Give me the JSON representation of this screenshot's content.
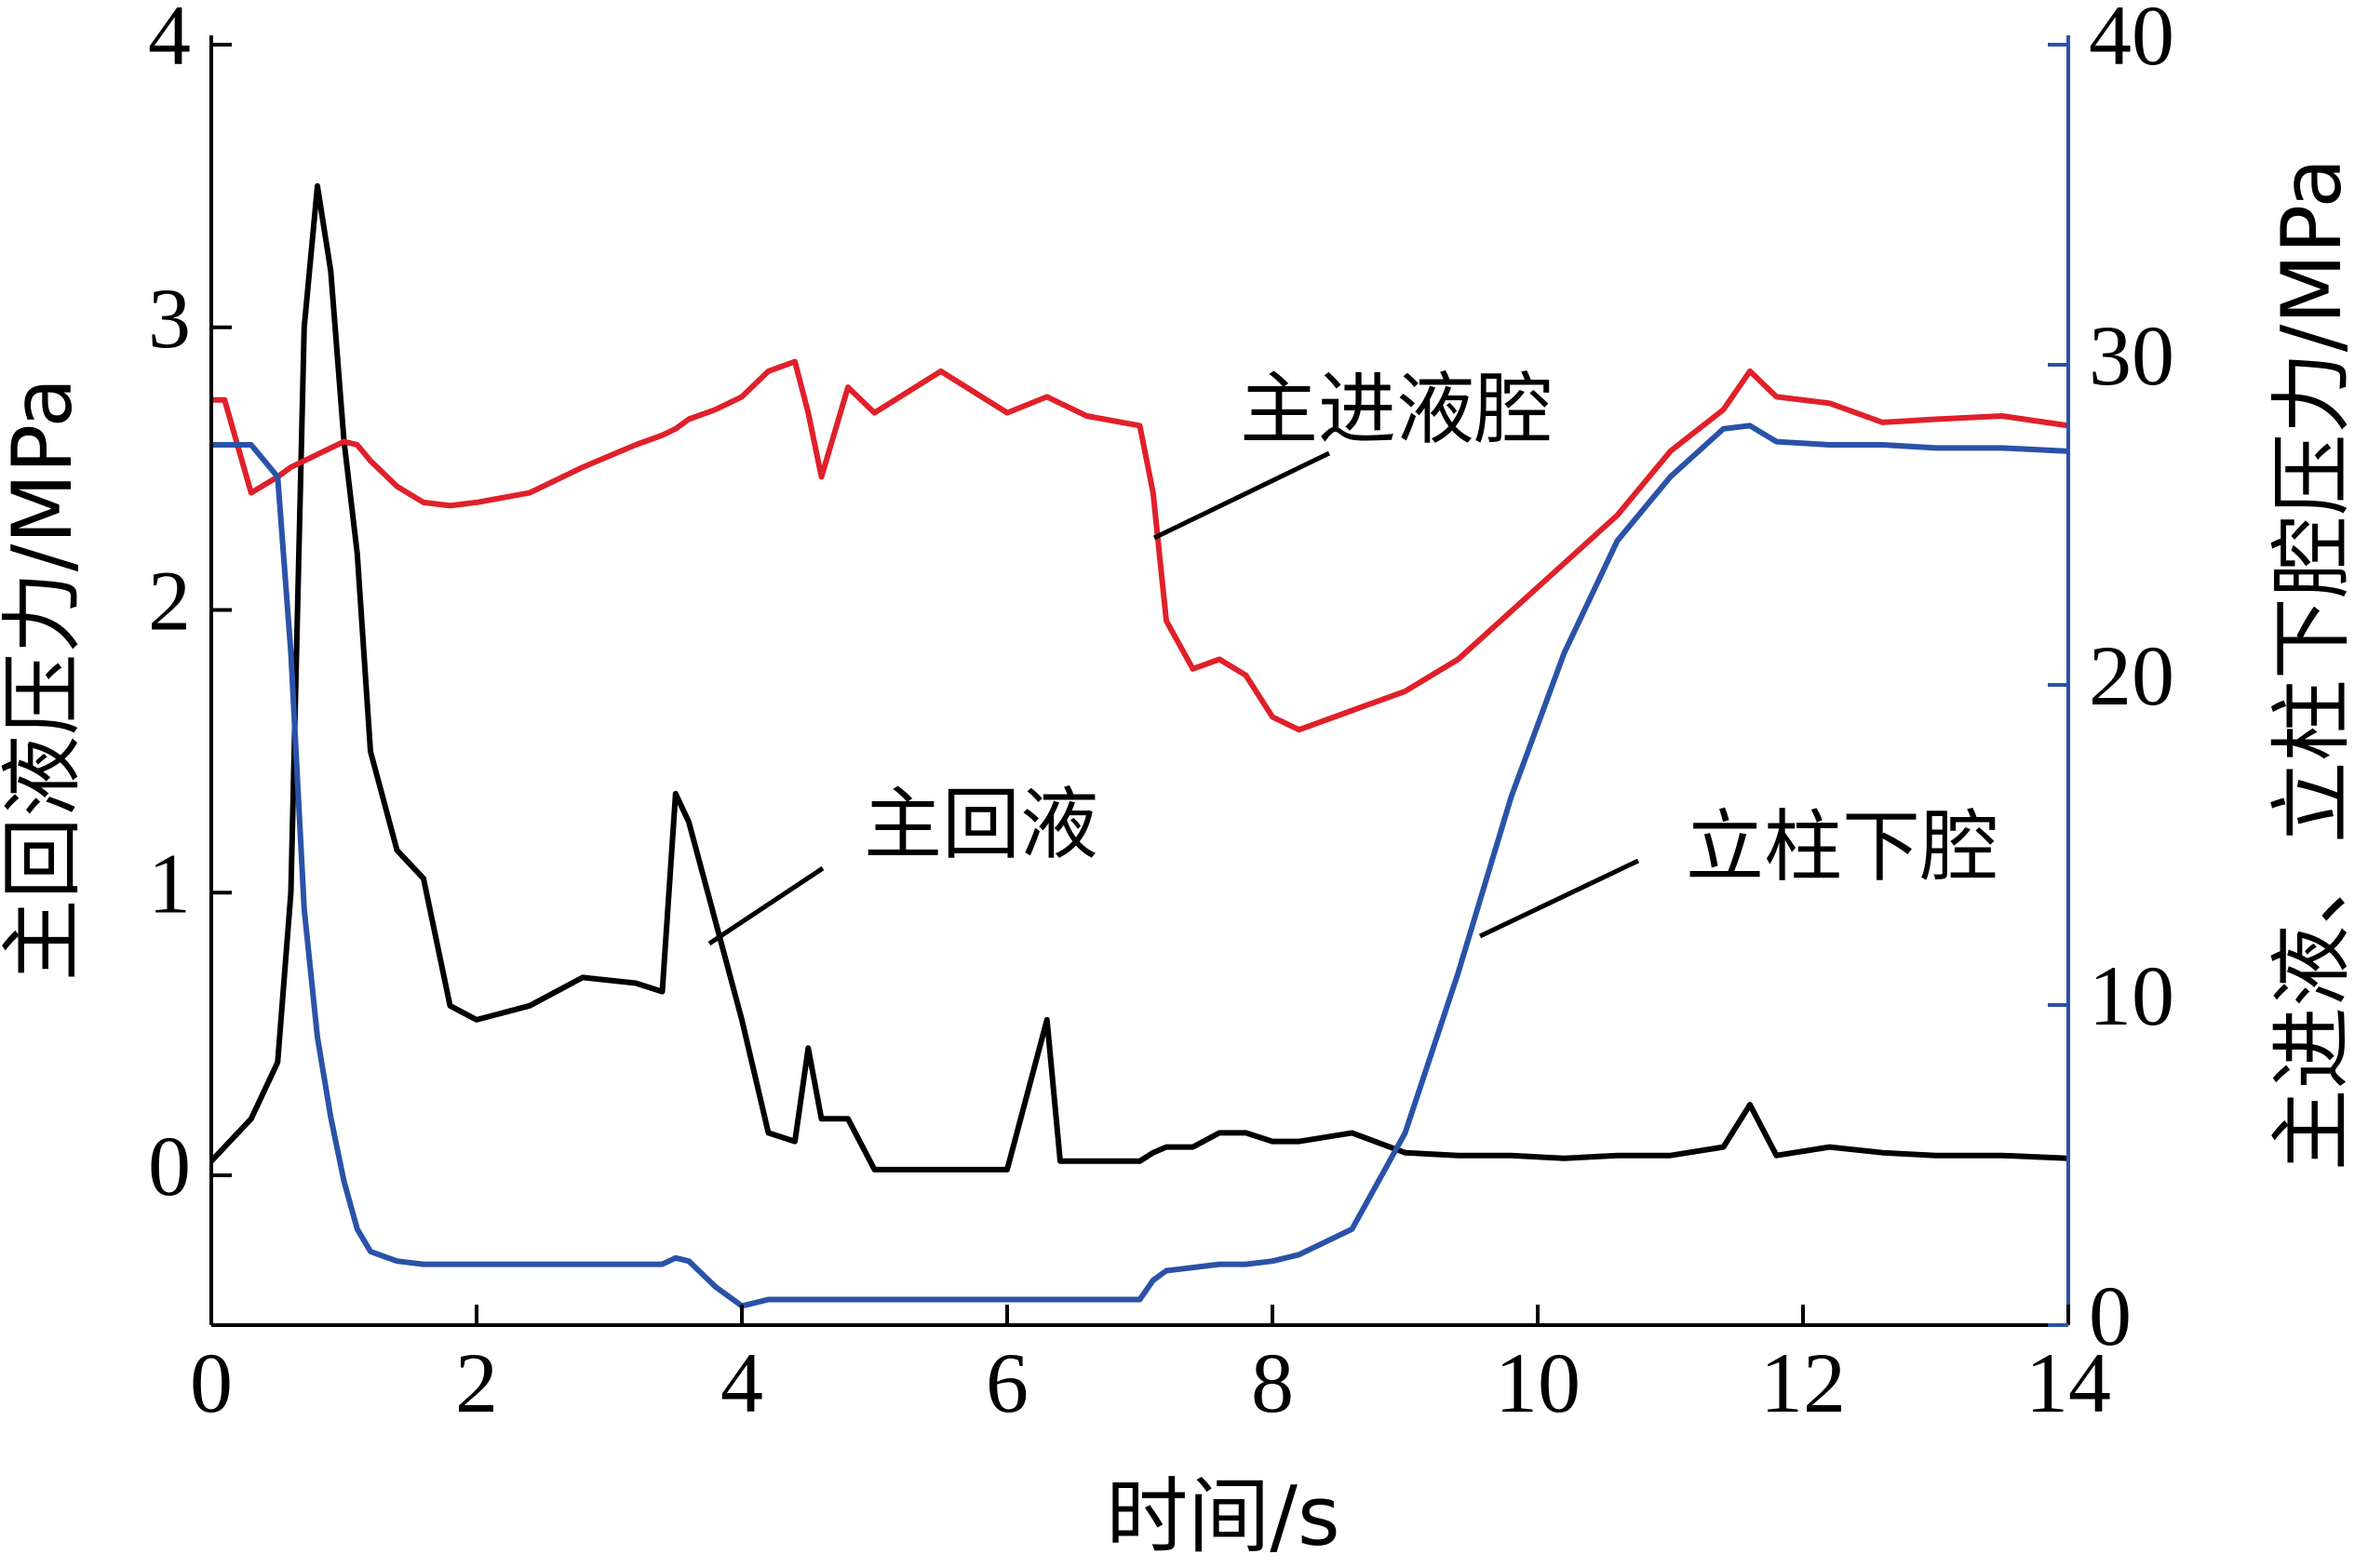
{
  "chart_data": {
    "type": "line",
    "x_label": "时间/s",
    "y_label": "主回液压力/MPa",
    "y2_label": "主进液、立柱下腔压力/MPa",
    "annotations": [
      "主进液腔",
      "主回液",
      "立柱下腔"
    ],
    "xlim": [
      0,
      14
    ],
    "xticks": [
      0,
      2,
      4,
      6,
      8,
      10,
      12,
      14
    ],
    "ylim": [
      -0.53,
      4
    ],
    "yticks": [
      0,
      1,
      2,
      3,
      4
    ],
    "y2lim": [
      0,
      40
    ],
    "y2ticks": [
      0,
      10,
      20,
      30,
      40
    ],
    "y_axis_color": "#000000",
    "y2_axis_color": "#2a52a8",
    "x": [
      0,
      0.1,
      0.3,
      0.5,
      0.6,
      0.7,
      0.8,
      0.9,
      1.0,
      1.1,
      1.2,
      1.4,
      1.6,
      1.8,
      2.0,
      2.4,
      2.8,
      3.2,
      3.4,
      3.5,
      3.6,
      3.8,
      4.0,
      4.2,
      4.4,
      4.5,
      4.6,
      4.8,
      5.0,
      5.5,
      6.0,
      6.3,
      6.4,
      6.6,
      7.0,
      7.1,
      7.2,
      7.4,
      7.6,
      7.8,
      8.0,
      8.2,
      8.6,
      9.0,
      9.4,
      9.8,
      10.2,
      10.6,
      11.0,
      11.4,
      11.6,
      11.8,
      12.2,
      12.6,
      13.0,
      13.5,
      14.0
    ],
    "series": [
      {
        "name": "主回液",
        "color": "#000000",
        "axis": "y",
        "values": [
          0.05,
          0.1,
          0.2,
          0.4,
          1.0,
          3.0,
          3.5,
          3.2,
          2.6,
          2.2,
          1.5,
          1.15,
          1.05,
          0.6,
          0.55,
          0.6,
          0.7,
          0.68,
          0.65,
          1.35,
          1.25,
          0.9,
          0.55,
          0.15,
          0.12,
          0.45,
          0.2,
          0.2,
          0.02,
          0.02,
          0.02,
          0.55,
          0.05,
          0.05,
          0.05,
          0.08,
          0.1,
          0.1,
          0.15,
          0.15,
          0.12,
          0.12,
          0.15,
          0.08,
          0.07,
          0.07,
          0.06,
          0.07,
          0.07,
          0.1,
          0.25,
          0.07,
          0.1,
          0.08,
          0.07,
          0.07,
          0.06
        ]
      },
      {
        "name": "主进液腔",
        "color": "#e0202a",
        "axis": "y2",
        "values": [
          28.9,
          28.9,
          26,
          26.5,
          26.8,
          27,
          27.2,
          27.4,
          27.6,
          27.5,
          27.0,
          26.2,
          25.7,
          25.6,
          25.7,
          26,
          26.8,
          27.5,
          27.8,
          28,
          28.3,
          28.6,
          29,
          29.8,
          30.1,
          28.5,
          26.5,
          29.3,
          28.5,
          29.8,
          28.5,
          29.0,
          28.8,
          28.4,
          28.1,
          26,
          22,
          20.5,
          20.8,
          20.3,
          19,
          18.6,
          19.2,
          19.8,
          20.8,
          22.3,
          23.8,
          25.3,
          27.3,
          28.6,
          29.8,
          29.0,
          28.8,
          28.2,
          28.3,
          28.4,
          28.1
        ]
      },
      {
        "name": "立柱下腔",
        "color": "#2a52a8",
        "axis": "y2",
        "values": [
          27.5,
          27.5,
          27.5,
          26.5,
          21,
          13,
          9,
          6.5,
          4.5,
          3,
          2.3,
          2.0,
          1.9,
          1.9,
          1.9,
          1.9,
          1.9,
          1.9,
          1.9,
          2.1,
          2.0,
          1.2,
          0.6,
          0.8,
          0.8,
          0.8,
          0.8,
          0.8,
          0.8,
          0.8,
          0.8,
          0.8,
          0.8,
          0.8,
          0.8,
          1.4,
          1.7,
          1.8,
          1.9,
          1.9,
          2.0,
          2.2,
          3.0,
          6,
          11,
          16.5,
          21,
          24.5,
          26.5,
          28,
          28.1,
          27.6,
          27.5,
          27.5,
          27.4,
          27.4,
          27.3
        ]
      }
    ]
  }
}
